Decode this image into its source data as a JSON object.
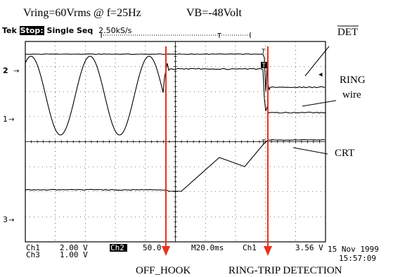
{
  "header": {
    "conditions": "Vring=60Vrms @ f=25Hz",
    "battery": "VB=-48Volt"
  },
  "scope": {
    "brand": "Tek",
    "state": "Stop:",
    "mode": "Single Seq",
    "sample_rate": "2.50kS/s",
    "trigger_marker": "T",
    "channel_markers": [
      "2",
      "1",
      "3"
    ],
    "ch1_scale": "2.00 V",
    "ch3_scale": "1.00 V",
    "ch2_label": "Ch2",
    "ch2_scale": "50.0",
    "timebase": "M20.0ms",
    "trigger_source": "Ch1",
    "trigger_level": "3.56 V",
    "date": "15 Nov 1999",
    "time": "15:57:09"
  },
  "annotations": {
    "det": "DET",
    "ring": "RING",
    "wire": "wire",
    "crt": "CRT",
    "off_hook": "OFF_HOOK",
    "ring_trip": "RING-TRIP DETECTION"
  },
  "colors": {
    "marker_arrow": "#e8321e",
    "trace": "#000000"
  }
}
